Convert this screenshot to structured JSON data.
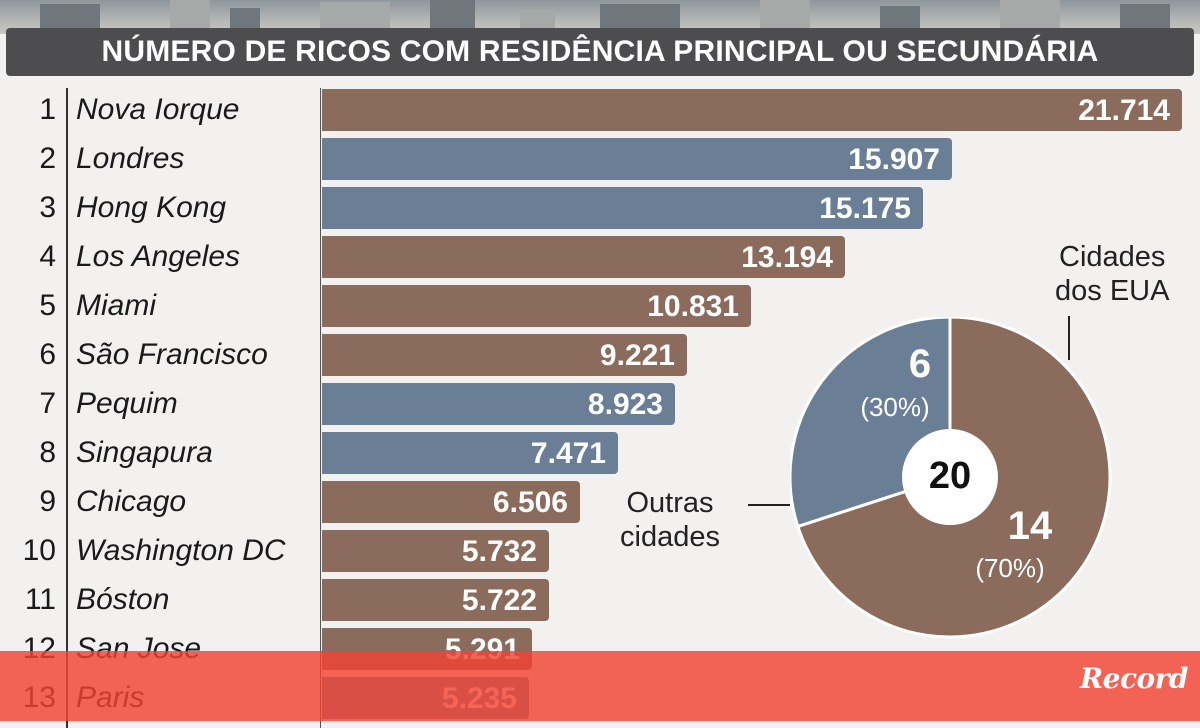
{
  "header": {
    "title": "NÚMERO DE RICOS COM RESIDÊNCIA PRINCIPAL OU SECUNDÁRIA"
  },
  "colors": {
    "usa": "#8a6b5c",
    "other": "#6a7f95",
    "title_bg": "#4d4d4f",
    "footer": "#f24333"
  },
  "chart_data": [
    {
      "type": "bar",
      "orientation": "horizontal",
      "title": "NÚMERO DE RICOS COM RESIDÊNCIA PRINCIPAL OU SECUNDÁRIA",
      "xlim": [
        0,
        21714
      ],
      "categories": [
        "Nova Iorque",
        "Londres",
        "Hong Kong",
        "Los Angeles",
        "Miami",
        "São Francisco",
        "Pequim",
        "Singapura",
        "Chicago",
        "Washington DC",
        "Bóston",
        "San Jose",
        "Paris"
      ],
      "ranks": [
        "1",
        "2",
        "3",
        "4",
        "5",
        "6",
        "7",
        "8",
        "9",
        "10",
        "11",
        "12",
        "13"
      ],
      "values": [
        21714,
        15907,
        15175,
        13194,
        10831,
        9221,
        8923,
        7471,
        6506,
        5732,
        5722,
        5291,
        5235
      ],
      "value_labels": [
        "21.714",
        "15.907",
        "15.175",
        "13.194",
        "10.831",
        "9.221",
        "8.923",
        "7.471",
        "6.506",
        "5.732",
        "5.722",
        "5.291",
        "5.235"
      ],
      "groups": [
        "usa",
        "other",
        "other",
        "usa",
        "usa",
        "usa",
        "other",
        "other",
        "usa",
        "usa",
        "usa",
        "usa",
        "other"
      ]
    },
    {
      "type": "pie",
      "donut": true,
      "center_label": "20",
      "slices": [
        {
          "label": "Cidades dos EUA",
          "value": 14,
          "value_label": "14",
          "percent_label": "(70%)",
          "group": "usa"
        },
        {
          "label": "Outras cidades",
          "value": 6,
          "value_label": "6",
          "percent_label": "(30%)",
          "group": "other"
        }
      ]
    }
  ],
  "donut_labels": {
    "usa_line1": "Cidades",
    "usa_line2": "dos EUA",
    "other_line1": "Outras",
    "other_line2": "cidades"
  },
  "brand": "Record"
}
